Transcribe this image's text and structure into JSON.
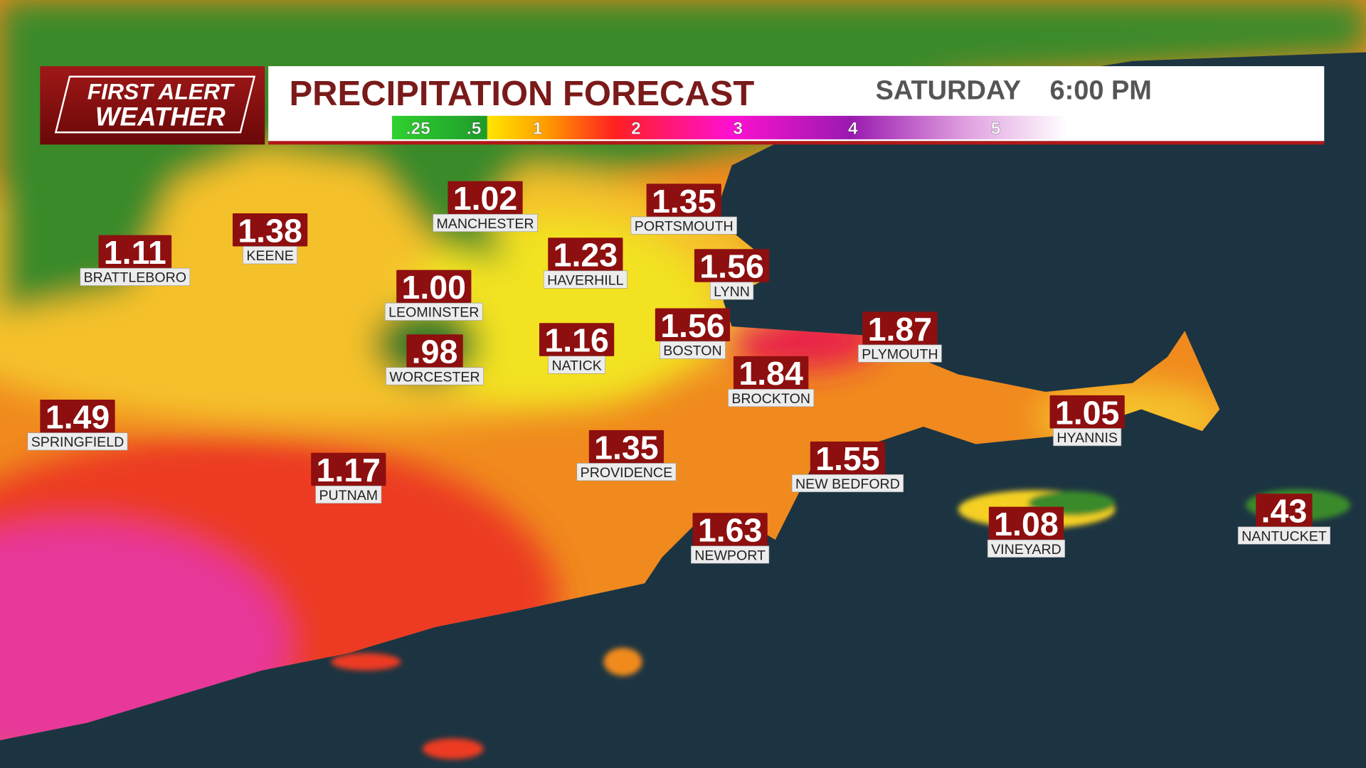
{
  "logo": {
    "line1": "FIRST ALERT",
    "line2": "WEATHER"
  },
  "header": {
    "title": "PRECIPITATION FORECAST",
    "day": "SATURDAY",
    "time": "6:00 PM"
  },
  "legend": {
    "ticks": [
      ".25",
      ".5",
      "1",
      "2",
      "3",
      "4",
      "5"
    ]
  },
  "cities": [
    {
      "name": "MANCHESTER",
      "value": "1.02"
    },
    {
      "name": "PORTSMOUTH",
      "value": "1.35"
    },
    {
      "name": "KEENE",
      "value": "1.38"
    },
    {
      "name": "BRATTLEBORO",
      "value": "1.11"
    },
    {
      "name": "HAVERHILL",
      "value": "1.23"
    },
    {
      "name": "LYNN",
      "value": "1.56"
    },
    {
      "name": "LEOMINSTER",
      "value": "1.00"
    },
    {
      "name": "BOSTON",
      "value": "1.56"
    },
    {
      "name": "PLYMOUTH",
      "value": "1.87"
    },
    {
      "name": "NATICK",
      "value": "1.16"
    },
    {
      "name": "WORCESTER",
      "value": ".98"
    },
    {
      "name": "BROCKTON",
      "value": "1.84"
    },
    {
      "name": "HYANNIS",
      "value": "1.05"
    },
    {
      "name": "SPRINGFIELD",
      "value": "1.49"
    },
    {
      "name": "PROVIDENCE",
      "value": "1.35"
    },
    {
      "name": "NEW BEDFORD",
      "value": "1.55"
    },
    {
      "name": "PUTNAM",
      "value": "1.17"
    },
    {
      "name": "NEWPORT",
      "value": "1.63"
    },
    {
      "name": "VINEYARD",
      "value": "1.08"
    },
    {
      "name": "NANTUCKET",
      "value": ".43"
    }
  ]
}
